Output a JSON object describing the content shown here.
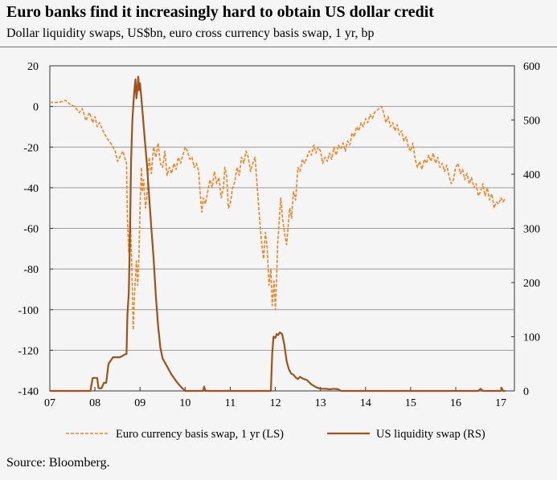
{
  "title": "Euro banks find it increasingly hard to obtain US dollar credit",
  "subtitle": "Dollar liquidity swaps, US$bn, euro cross currency basis swap, 1 yr, bp",
  "source": "Source: Bloomberg.",
  "colors": {
    "basis": "#f58220",
    "swap": "#a0521a",
    "grid": "#9a9a9a",
    "background": "#f5f5f5"
  },
  "chart_data": {
    "type": "line",
    "x_ticks": [
      "07",
      "08",
      "09",
      "10",
      "11",
      "12",
      "13",
      "14",
      "15",
      "16",
      "17"
    ],
    "xlim": [
      2007.0,
      2017.3
    ],
    "y_left": {
      "ticks": [
        "20",
        "0",
        "-20",
        "-40",
        "-60",
        "-80",
        "-100",
        "-120",
        "-140"
      ],
      "lim": [
        -140,
        20
      ]
    },
    "y_right": {
      "ticks": [
        "600",
        "500",
        "400",
        "300",
        "200",
        "100",
        "0"
      ],
      "lim": [
        0,
        600
      ]
    },
    "grid": "horizontal",
    "legend_position": "bottom",
    "series": [
      {
        "name": "Euro currency basis swap, 1 yr (LS)",
        "axis": "left",
        "style": "dashed",
        "points": [
          [
            2007.0,
            2
          ],
          [
            2007.2,
            2
          ],
          [
            2007.35,
            3
          ],
          [
            2007.45,
            1
          ],
          [
            2007.55,
            0
          ],
          [
            2007.65,
            -3
          ],
          [
            2007.72,
            -1
          ],
          [
            2007.8,
            -7
          ],
          [
            2007.88,
            -3
          ],
          [
            2007.95,
            -8
          ],
          [
            2008.0,
            -5
          ],
          [
            2008.05,
            -10
          ],
          [
            2008.1,
            -8
          ],
          [
            2008.2,
            -13
          ],
          [
            2008.28,
            -16
          ],
          [
            2008.35,
            -18
          ],
          [
            2008.45,
            -22
          ],
          [
            2008.5,
            -27
          ],
          [
            2008.55,
            -25
          ],
          [
            2008.62,
            -22
          ],
          [
            2008.7,
            -28
          ],
          [
            2008.72,
            -55
          ],
          [
            2008.75,
            -72
          ],
          [
            2008.78,
            -52
          ],
          [
            2008.82,
            -80
          ],
          [
            2008.85,
            -110
          ],
          [
            2008.88,
            -92
          ],
          [
            2008.92,
            -76
          ],
          [
            2008.95,
            -88
          ],
          [
            2008.98,
            -70
          ],
          [
            2009.0,
            -50
          ],
          [
            2009.03,
            -30
          ],
          [
            2009.05,
            -42
          ],
          [
            2009.08,
            -36
          ],
          [
            2009.12,
            -50
          ],
          [
            2009.15,
            -45
          ],
          [
            2009.2,
            -25
          ],
          [
            2009.25,
            -33
          ],
          [
            2009.3,
            -20
          ],
          [
            2009.35,
            -25
          ],
          [
            2009.4,
            -18
          ],
          [
            2009.45,
            -28
          ],
          [
            2009.5,
            -30
          ],
          [
            2009.55,
            -22
          ],
          [
            2009.6,
            -34
          ],
          [
            2009.65,
            -30
          ],
          [
            2009.7,
            -33
          ],
          [
            2009.75,
            -28
          ],
          [
            2009.8,
            -31
          ],
          [
            2009.85,
            -25
          ],
          [
            2009.9,
            -28
          ],
          [
            2009.95,
            -24
          ],
          [
            2010.0,
            -20
          ],
          [
            2010.05,
            -22
          ],
          [
            2010.1,
            -26
          ],
          [
            2010.15,
            -25
          ],
          [
            2010.2,
            -30
          ],
          [
            2010.25,
            -28
          ],
          [
            2010.3,
            -32
          ],
          [
            2010.33,
            -42
          ],
          [
            2010.37,
            -52
          ],
          [
            2010.4,
            -45
          ],
          [
            2010.45,
            -48
          ],
          [
            2010.5,
            -42
          ],
          [
            2010.55,
            -36
          ],
          [
            2010.6,
            -40
          ],
          [
            2010.65,
            -32
          ],
          [
            2010.7,
            -38
          ],
          [
            2010.75,
            -35
          ],
          [
            2010.8,
            -45
          ],
          [
            2010.85,
            -40
          ],
          [
            2010.88,
            -30
          ],
          [
            2010.92,
            -34
          ],
          [
            2010.96,
            -50
          ],
          [
            2011.0,
            -48
          ],
          [
            2011.05,
            -40
          ],
          [
            2011.1,
            -37
          ],
          [
            2011.15,
            -30
          ],
          [
            2011.2,
            -34
          ],
          [
            2011.25,
            -25
          ],
          [
            2011.3,
            -28
          ],
          [
            2011.35,
            -22
          ],
          [
            2011.4,
            -25
          ],
          [
            2011.45,
            -32
          ],
          [
            2011.5,
            -28
          ],
          [
            2011.55,
            -25
          ],
          [
            2011.6,
            -40
          ],
          [
            2011.65,
            -55
          ],
          [
            2011.7,
            -68
          ],
          [
            2011.74,
            -75
          ],
          [
            2011.78,
            -62
          ],
          [
            2011.82,
            -70
          ],
          [
            2011.86,
            -88
          ],
          [
            2011.9,
            -80
          ],
          [
            2011.93,
            -98
          ],
          [
            2011.97,
            -86
          ],
          [
            2012.0,
            -100
          ],
          [
            2012.02,
            -90
          ],
          [
            2012.05,
            -68
          ],
          [
            2012.08,
            -58
          ],
          [
            2012.12,
            -45
          ],
          [
            2012.16,
            -55
          ],
          [
            2012.2,
            -62
          ],
          [
            2012.25,
            -68
          ],
          [
            2012.28,
            -60
          ],
          [
            2012.32,
            -50
          ],
          [
            2012.36,
            -55
          ],
          [
            2012.4,
            -42
          ],
          [
            2012.45,
            -46
          ],
          [
            2012.5,
            -30
          ],
          [
            2012.55,
            -32
          ],
          [
            2012.6,
            -26
          ],
          [
            2012.65,
            -28
          ],
          [
            2012.7,
            -25
          ],
          [
            2012.75,
            -22
          ],
          [
            2012.8,
            -24
          ],
          [
            2012.85,
            -19
          ],
          [
            2012.9,
            -23
          ],
          [
            2012.95,
            -20
          ],
          [
            2013.0,
            -22
          ],
          [
            2013.05,
            -28
          ],
          [
            2013.1,
            -25
          ],
          [
            2013.15,
            -27
          ],
          [
            2013.2,
            -23
          ],
          [
            2013.25,
            -26
          ],
          [
            2013.3,
            -20
          ],
          [
            2013.35,
            -24
          ],
          [
            2013.4,
            -19
          ],
          [
            2013.45,
            -21
          ],
          [
            2013.5,
            -18
          ],
          [
            2013.55,
            -22
          ],
          [
            2013.6,
            -17
          ],
          [
            2013.65,
            -19
          ],
          [
            2013.7,
            -13
          ],
          [
            2013.75,
            -15
          ],
          [
            2013.8,
            -10
          ],
          [
            2013.85,
            -12
          ],
          [
            2013.9,
            -8
          ],
          [
            2013.95,
            -10
          ],
          [
            2014.0,
            -6
          ],
          [
            2014.05,
            -8
          ],
          [
            2014.1,
            -4
          ],
          [
            2014.15,
            -6
          ],
          [
            2014.2,
            -3
          ],
          [
            2014.25,
            -2
          ],
          [
            2014.3,
            -1
          ],
          [
            2014.35,
            0
          ],
          [
            2014.4,
            -3
          ],
          [
            2014.45,
            -8
          ],
          [
            2014.5,
            -5
          ],
          [
            2014.55,
            -10
          ],
          [
            2014.6,
            -8
          ],
          [
            2014.65,
            -12
          ],
          [
            2014.7,
            -9
          ],
          [
            2014.75,
            -14
          ],
          [
            2014.8,
            -12
          ],
          [
            2014.85,
            -17
          ],
          [
            2014.9,
            -15
          ],
          [
            2014.95,
            -20
          ],
          [
            2015.0,
            -22
          ],
          [
            2015.05,
            -18
          ],
          [
            2015.1,
            -26
          ],
          [
            2015.15,
            -30
          ],
          [
            2015.2,
            -27
          ],
          [
            2015.25,
            -31
          ],
          [
            2015.3,
            -26
          ],
          [
            2015.35,
            -28
          ],
          [
            2015.4,
            -24
          ],
          [
            2015.45,
            -27
          ],
          [
            2015.5,
            -23
          ],
          [
            2015.55,
            -28
          ],
          [
            2015.6,
            -25
          ],
          [
            2015.65,
            -30
          ],
          [
            2015.7,
            -28
          ],
          [
            2015.75,
            -32
          ],
          [
            2015.8,
            -29
          ],
          [
            2015.85,
            -34
          ],
          [
            2015.9,
            -38
          ],
          [
            2015.95,
            -36
          ],
          [
            2016.0,
            -30
          ],
          [
            2016.05,
            -28
          ],
          [
            2016.1,
            -33
          ],
          [
            2016.15,
            -31
          ],
          [
            2016.2,
            -36
          ],
          [
            2016.25,
            -33
          ],
          [
            2016.3,
            -38
          ],
          [
            2016.35,
            -35
          ],
          [
            2016.4,
            -40
          ],
          [
            2016.45,
            -38
          ],
          [
            2016.5,
            -44
          ],
          [
            2016.55,
            -42
          ],
          [
            2016.6,
            -38
          ],
          [
            2016.65,
            -44
          ],
          [
            2016.7,
            -40
          ],
          [
            2016.75,
            -46
          ],
          [
            2016.8,
            -43
          ],
          [
            2016.85,
            -50
          ],
          [
            2016.9,
            -47
          ],
          [
            2016.95,
            -48
          ],
          [
            2017.0,
            -45
          ],
          [
            2017.05,
            -47
          ],
          [
            2017.1,
            -45
          ]
        ]
      },
      {
        "name": "US liquidity swap (RS)",
        "axis": "right",
        "style": "solid",
        "points": [
          [
            2007.0,
            0
          ],
          [
            2007.9,
            0
          ],
          [
            2007.95,
            24
          ],
          [
            2008.05,
            24
          ],
          [
            2008.08,
            5
          ],
          [
            2008.15,
            5
          ],
          [
            2008.2,
            15
          ],
          [
            2008.25,
            15
          ],
          [
            2008.3,
            50
          ],
          [
            2008.4,
            62
          ],
          [
            2008.55,
            62
          ],
          [
            2008.62,
            65
          ],
          [
            2008.68,
            68
          ],
          [
            2008.7,
            68
          ],
          [
            2008.72,
            140
          ],
          [
            2008.75,
            180
          ],
          [
            2008.78,
            300
          ],
          [
            2008.8,
            420
          ],
          [
            2008.83,
            500
          ],
          [
            2008.86,
            540
          ],
          [
            2008.88,
            560
          ],
          [
            2008.9,
            575
          ],
          [
            2008.92,
            540
          ],
          [
            2008.94,
            555
          ],
          [
            2008.96,
            580
          ],
          [
            2008.98,
            555
          ],
          [
            2009.0,
            568
          ],
          [
            2009.03,
            540
          ],
          [
            2009.06,
            510
          ],
          [
            2009.1,
            470
          ],
          [
            2009.15,
            420
          ],
          [
            2009.2,
            360
          ],
          [
            2009.25,
            300
          ],
          [
            2009.3,
            245
          ],
          [
            2009.35,
            175
          ],
          [
            2009.4,
            120
          ],
          [
            2009.45,
            80
          ],
          [
            2009.5,
            60
          ],
          [
            2009.6,
            45
          ],
          [
            2009.7,
            30
          ],
          [
            2009.8,
            18
          ],
          [
            2009.9,
            8
          ],
          [
            2010.0,
            0
          ],
          [
            2010.4,
            0
          ],
          [
            2010.42,
            8
          ],
          [
            2010.45,
            0
          ],
          [
            2011.0,
            0
          ],
          [
            2011.9,
            0
          ],
          [
            2011.93,
            70
          ],
          [
            2011.96,
            100
          ],
          [
            2012.0,
            98
          ],
          [
            2012.03,
            105
          ],
          [
            2012.06,
            103
          ],
          [
            2012.1,
            108
          ],
          [
            2012.15,
            105
          ],
          [
            2012.2,
            85
          ],
          [
            2012.25,
            55
          ],
          [
            2012.3,
            40
          ],
          [
            2012.35,
            32
          ],
          [
            2012.4,
            30
          ],
          [
            2012.45,
            25
          ],
          [
            2012.5,
            22
          ],
          [
            2012.55,
            26
          ],
          [
            2012.6,
            23
          ],
          [
            2012.7,
            20
          ],
          [
            2012.8,
            12
          ],
          [
            2012.9,
            7
          ],
          [
            2013.0,
            4
          ],
          [
            2013.1,
            4
          ],
          [
            2013.2,
            3
          ],
          [
            2013.3,
            4
          ],
          [
            2013.4,
            3
          ],
          [
            2013.45,
            0
          ],
          [
            2016.5,
            0
          ],
          [
            2016.55,
            4
          ],
          [
            2016.6,
            0
          ],
          [
            2017.0,
            0
          ],
          [
            2017.02,
            5
          ],
          [
            2017.05,
            0
          ],
          [
            2017.1,
            0
          ]
        ]
      }
    ]
  }
}
